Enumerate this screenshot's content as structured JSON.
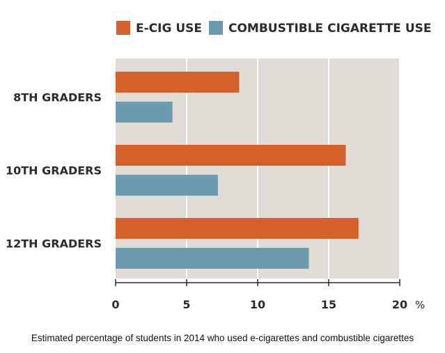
{
  "chart_data": {
    "type": "bar",
    "orientation": "horizontal",
    "categories": [
      "8TH GRADERS",
      "10TH GRADERS",
      "12TH GRADERS"
    ],
    "series": [
      {
        "name": "E-CIG USE",
        "color": "#d4602a",
        "values": [
          8.7,
          16.2,
          17.1
        ]
      },
      {
        "name": "COMBUSTIBLE CIGARETTE USE",
        "color": "#6a9bb0",
        "values": [
          4.0,
          7.2,
          13.6
        ]
      }
    ],
    "xticks": [
      "0",
      "5",
      "10",
      "15",
      "20"
    ],
    "xunit": "%",
    "xlim": [
      0,
      20
    ],
    "grid": true,
    "legend_position": "top",
    "plot_background": "#e0dbd5"
  },
  "caption": "Estimated percentage of students in 2014 who used e-cigarettes and combustible cigarettes"
}
